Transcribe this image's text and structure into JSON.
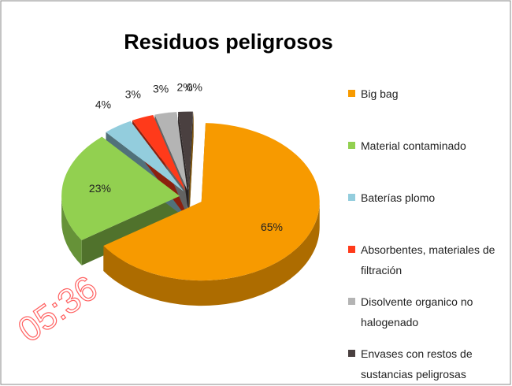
{
  "chart_data": {
    "type": "pie",
    "title": "Residuos peligrosos",
    "categories": [
      "Big bag",
      "Material contaminado",
      "Baterías plomo",
      "Absorbentes, materiales de filtración",
      "Disolvente organico no halogenado",
      "Envases con restos de sustancias peligrosas",
      null
    ],
    "values": [
      65,
      23,
      4,
      3,
      3,
      2,
      0
    ],
    "value_labels": [
      "65%",
      "23%",
      "4%",
      "3%",
      "3%",
      "2%",
      "0%"
    ],
    "colors": [
      "#f79a00",
      "#92d050",
      "#93cddd",
      "#ff3a1a",
      "#b4b4b4",
      "#4a4040",
      "#e8a020"
    ],
    "legend": "right",
    "watermark": "05:36"
  }
}
